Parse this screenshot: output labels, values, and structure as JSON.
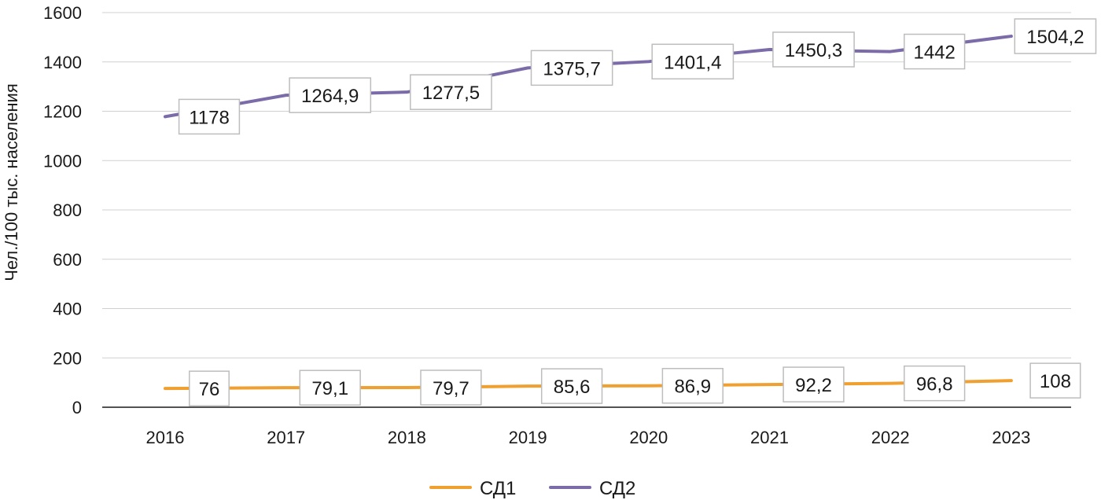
{
  "chart_data": {
    "type": "line",
    "title": "",
    "xlabel": "",
    "ylabel": "Чел./100 тыс. населения",
    "categories": [
      "2016",
      "2017",
      "2018",
      "2019",
      "2020",
      "2021",
      "2022",
      "2023"
    ],
    "yticks": [
      "0",
      "200",
      "400",
      "600",
      "800",
      "1000",
      "1200",
      "1400",
      "1600"
    ],
    "ylim": [
      0,
      1600
    ],
    "grid": true,
    "legend_position": "bottom-center",
    "series": [
      {
        "name": "СД1",
        "color": "#f0a030",
        "values": [
          76,
          79.1,
          79.7,
          85.6,
          86.9,
          92.2,
          96.8,
          108
        ],
        "labels": [
          "76",
          "79,1",
          "79,7",
          "85,6",
          "86,9",
          "92,2",
          "96,8",
          "108"
        ]
      },
      {
        "name": "СД2",
        "color": "#7b6ba8",
        "values": [
          1178,
          1264.9,
          1277.5,
          1375.7,
          1401.4,
          1450.3,
          1442,
          1504.2
        ],
        "labels": [
          "1178",
          "1264,9",
          "1277,5",
          "1375,7",
          "1401,4",
          "1450,3",
          "1442",
          "1504,2"
        ]
      }
    ]
  }
}
